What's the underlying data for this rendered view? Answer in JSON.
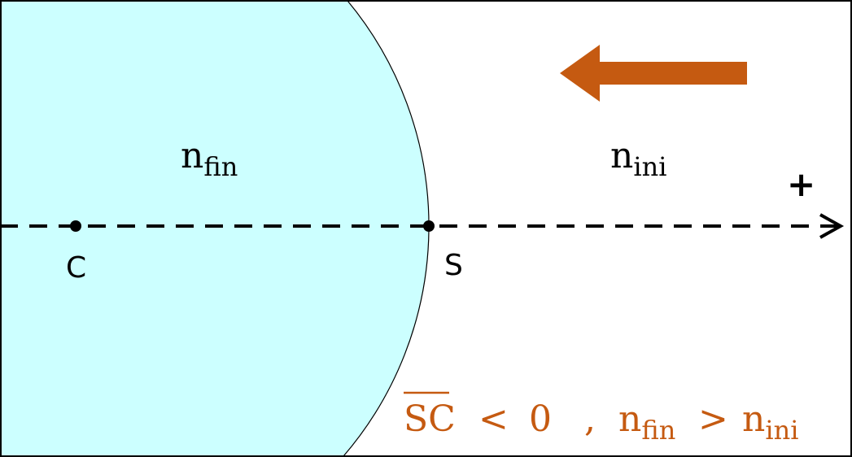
{
  "colors": {
    "medium_fill": "#ccffff",
    "accent": "#c55a11",
    "line": "#000000"
  },
  "labels": {
    "n_fin_base": "n",
    "n_fin_sub": "fin",
    "n_ini_base": "n",
    "n_ini_sub": "ini",
    "center_point": "C",
    "vertex_point": "S",
    "positive_direction": "+"
  },
  "condition": {
    "segment": "SC",
    "relation1": "<",
    "value": "0",
    "separator": ",",
    "n1_base": "n",
    "n1_sub": "fin",
    "relation2": ">",
    "n2_base": "n",
    "n2_sub": "ini"
  },
  "icons": {
    "light_direction": "arrow-left",
    "axis_direction": "arrow-right"
  }
}
